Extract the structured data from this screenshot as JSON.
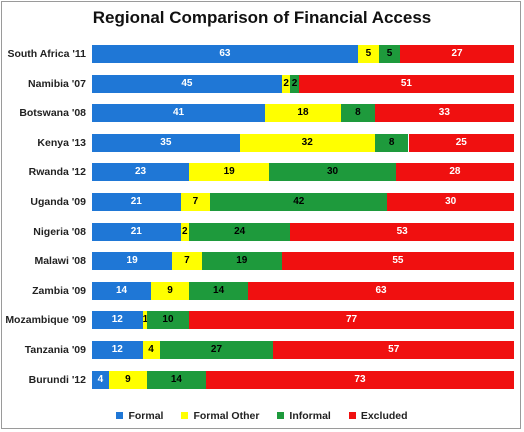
{
  "chart_data": {
    "type": "bar",
    "orientation": "horizontal",
    "stacked": true,
    "title": "Regional Comparison of Financial Access",
    "categories": [
      "South Africa '11",
      "Namibia '07",
      "Botswana '08",
      "Kenya '13",
      "Rwanda '12",
      "Uganda '09",
      "Nigeria '08",
      "Malawi '08",
      "Zambia '09",
      "Mozambique '09",
      "Tanzania '09",
      "Burundi '12"
    ],
    "series": [
      {
        "name": "Formal",
        "color": "#1f77d6",
        "text_color": "#ffffff",
        "values": [
          63,
          45,
          41,
          35,
          23,
          21,
          21,
          19,
          14,
          12,
          12,
          4
        ]
      },
      {
        "name": "Formal Other",
        "color": "#ffff00",
        "text_color": "#000000",
        "values": [
          5,
          2,
          18,
          32,
          19,
          7,
          2,
          7,
          9,
          1,
          4,
          9
        ]
      },
      {
        "name": "Informal",
        "color": "#1e9a3c",
        "text_color": "#000000",
        "values": [
          5,
          2,
          8,
          8,
          30,
          42,
          24,
          19,
          14,
          10,
          27,
          14
        ]
      },
      {
        "name": "Excluded",
        "color": "#f01010",
        "text_color": "#ffffff",
        "values": [
          27,
          51,
          33,
          25,
          28,
          30,
          53,
          55,
          63,
          77,
          57,
          73
        ]
      }
    ],
    "xlim": [
      0,
      100
    ],
    "grid": false,
    "legend_position": "bottom"
  }
}
